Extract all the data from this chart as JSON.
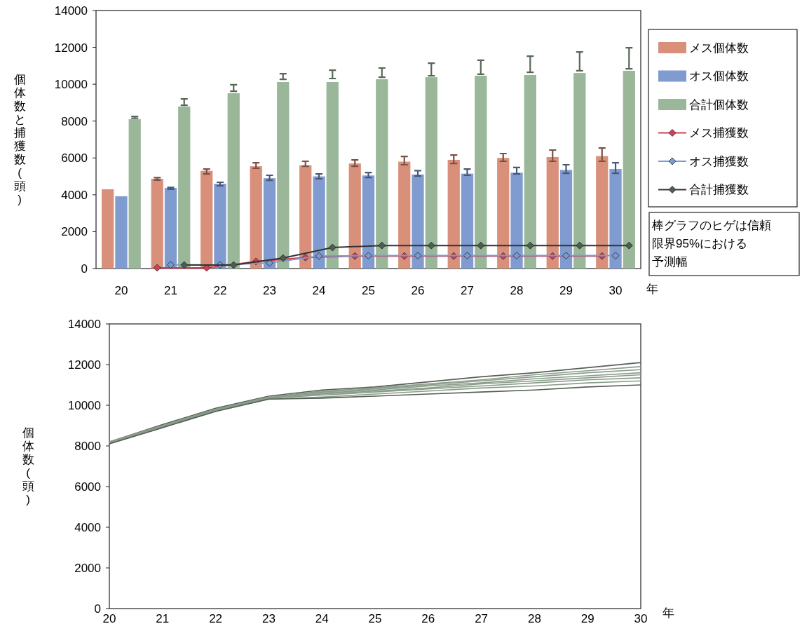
{
  "chart_data": [
    {
      "type": "bar",
      "categories": [
        "20",
        "21",
        "22",
        "23",
        "24",
        "25",
        "26",
        "27",
        "28",
        "29",
        "30"
      ],
      "xlabel": "年",
      "ylabel": "個体数と捕獲数(頭)",
      "ylim": [
        0,
        14000
      ],
      "yticks": [
        0,
        2000,
        4000,
        6000,
        8000,
        10000,
        12000,
        14000
      ],
      "grid": false,
      "legend": "right",
      "annotations": [
        "棒グラフのヒゲは信頼限界95%における予測幅"
      ],
      "series": [
        {
          "name": "メス個体数",
          "type": "bar",
          "color": "#d9907a",
          "values": [
            4300,
            4870,
            5300,
            5550,
            5600,
            5700,
            5800,
            5900,
            6000,
            6050,
            6100
          ],
          "errors": [
            null,
            [
              4800,
              4930
            ],
            [
              5130,
              5400
            ],
            [
              5440,
              5740
            ],
            [
              5550,
              5820
            ],
            [
              5550,
              5890
            ],
            [
              5630,
              6080
            ],
            [
              5700,
              6160
            ],
            [
              5820,
              6240
            ],
            [
              5820,
              6430
            ],
            [
              5820,
              6540
            ]
          ]
        },
        {
          "name": "オス個体数",
          "type": "bar",
          "color": "#7f9bd0",
          "values": [
            3920,
            4370,
            4600,
            4900,
            5000,
            5050,
            5100,
            5150,
            5200,
            5350,
            5400
          ],
          "errors": [
            null,
            [
              4300,
              4400
            ],
            [
              4490,
              4680
            ],
            [
              4790,
              5060
            ],
            [
              4870,
              5130
            ],
            [
              4940,
              5210
            ],
            [
              5020,
              5310
            ],
            [
              5060,
              5400
            ],
            [
              5130,
              5480
            ],
            [
              5170,
              5630
            ],
            [
              5170,
              5740
            ]
          ]
        },
        {
          "name": "合計個体数",
          "type": "bar",
          "color": "#9ab79a",
          "values": [
            8100,
            8790,
            9510,
            10120,
            10120,
            10270,
            10380,
            10460,
            10500,
            10610,
            10730
          ],
          "errors": [
            [
              8150,
              8250
            ],
            [
              8860,
              9200
            ],
            [
              9620,
              9970
            ],
            [
              10270,
              10570
            ],
            [
              10310,
              10760
            ],
            [
              10380,
              10880
            ],
            [
              10460,
              11140
            ],
            [
              10540,
              11300
            ],
            [
              10650,
              11520
            ],
            [
              10730,
              11750
            ],
            [
              10840,
              11980
            ]
          ]
        },
        {
          "name": "メス捕獲数",
          "type": "line",
          "color": "#d0405a",
          "marker": "diamond",
          "values": [
            null,
            40,
            40,
            380,
            600,
            680,
            680,
            680,
            680,
            680,
            680
          ]
        },
        {
          "name": "オス捕獲数",
          "type": "line",
          "color": "#7a9ad0",
          "marker": "diamond",
          "values": [
            null,
            200,
            200,
            300,
            680,
            700,
            700,
            700,
            700,
            700,
            700
          ]
        },
        {
          "name": "合計捕獲数",
          "type": "line",
          "color": "#333333",
          "marker": "diamond",
          "values": [
            null,
            190,
            190,
            570,
            1140,
            1250,
            1250,
            1250,
            1250,
            1250,
            1250
          ]
        }
      ]
    },
    {
      "type": "line",
      "x": [
        20,
        21,
        22,
        23,
        24,
        25,
        26,
        27,
        28,
        29,
        30
      ],
      "xlim": [
        20,
        30
      ],
      "xticks": [
        20,
        21,
        22,
        23,
        24,
        25,
        26,
        27,
        28,
        29,
        30
      ],
      "xlabel": "年",
      "ylabel": "個体数(頭)",
      "ylim": [
        0,
        14000
      ],
      "yticks": [
        0,
        2000,
        4000,
        6000,
        8000,
        10000,
        12000,
        14000
      ],
      "grid": false,
      "marker": "none",
      "series": [
        {
          "color": "#555f55",
          "values": [
            8200,
            9050,
            9850,
            10450,
            10750,
            10900,
            11150,
            11400,
            11600,
            11850,
            12100
          ]
        },
        {
          "color": "#8a9c8a",
          "values": [
            8200,
            9000,
            9800,
            10400,
            10700,
            10850,
            11050,
            11250,
            11500,
            11700,
            11900
          ]
        },
        {
          "color": "#8a9c8a",
          "values": [
            8200,
            9000,
            9800,
            10400,
            10650,
            10800,
            11000,
            11200,
            11400,
            11600,
            11750
          ]
        },
        {
          "color": "#8a9c8a",
          "values": [
            8150,
            8950,
            9750,
            10350,
            10600,
            10750,
            10950,
            11100,
            11300,
            11450,
            11600
          ]
        },
        {
          "color": "#8a9c8a",
          "values": [
            8200,
            9000,
            9800,
            10400,
            10550,
            10700,
            10850,
            11050,
            11200,
            11350,
            11500
          ]
        },
        {
          "color": "#8a9c8a",
          "values": [
            8150,
            8950,
            9750,
            10350,
            10500,
            10650,
            10800,
            10950,
            11100,
            11250,
            11350
          ]
        },
        {
          "color": "#8a9c8a",
          "values": [
            8100,
            8900,
            9700,
            10300,
            10400,
            10550,
            10700,
            10850,
            10950,
            11100,
            11200
          ]
        },
        {
          "color": "#555f55",
          "values": [
            8100,
            8900,
            9700,
            10300,
            10350,
            10450,
            10550,
            10650,
            10750,
            10900,
            11000
          ]
        }
      ]
    }
  ]
}
